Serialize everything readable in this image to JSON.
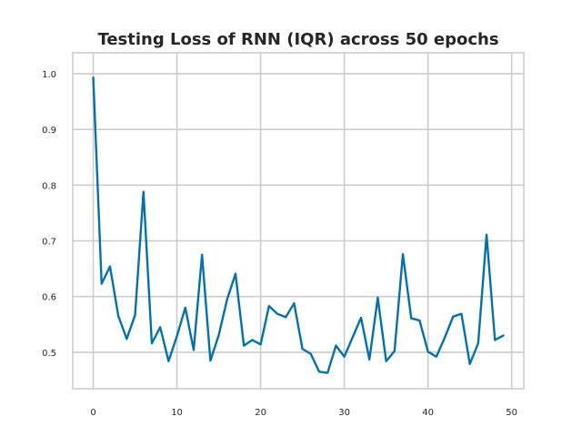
{
  "chart_data": {
    "type": "line",
    "title": "Testing Loss of RNN (IQR) across 50 epochs",
    "xlabel": "",
    "ylabel": "",
    "xlim": [
      -2.45,
      51.45
    ],
    "ylim": [
      0.4345,
      1.0375
    ],
    "x_ticks": [
      0,
      10,
      20,
      30,
      40,
      50
    ],
    "y_ticks": [
      0.5,
      0.6,
      0.7,
      0.8,
      0.9,
      1.0
    ],
    "grid": true,
    "legend": "none",
    "series": [
      {
        "color": "#0072b2",
        "x": [
          0,
          1,
          2,
          3,
          4,
          5,
          6,
          7,
          8,
          9,
          10,
          11,
          12,
          13,
          14,
          15,
          16,
          17,
          18,
          19,
          20,
          21,
          22,
          23,
          24,
          25,
          26,
          27,
          28,
          29,
          30,
          31,
          32,
          33,
          34,
          35,
          36,
          37,
          38,
          39,
          40,
          41,
          42,
          43,
          44,
          45,
          46,
          47,
          48,
          49
        ],
        "values": [
          0.993,
          0.623,
          0.654,
          0.565,
          0.524,
          0.567,
          0.788,
          0.516,
          0.545,
          0.484,
          0.529,
          0.58,
          0.504,
          0.675,
          0.485,
          0.531,
          0.595,
          0.641,
          0.512,
          0.522,
          0.514,
          0.583,
          0.569,
          0.563,
          0.588,
          0.506,
          0.497,
          0.465,
          0.463,
          0.512,
          0.492,
          0.527,
          0.562,
          0.487,
          0.598,
          0.484,
          0.502,
          0.676,
          0.561,
          0.557,
          0.501,
          0.492,
          0.526,
          0.564,
          0.569,
          0.479,
          0.516,
          0.711,
          0.522,
          0.53
        ]
      }
    ]
  }
}
